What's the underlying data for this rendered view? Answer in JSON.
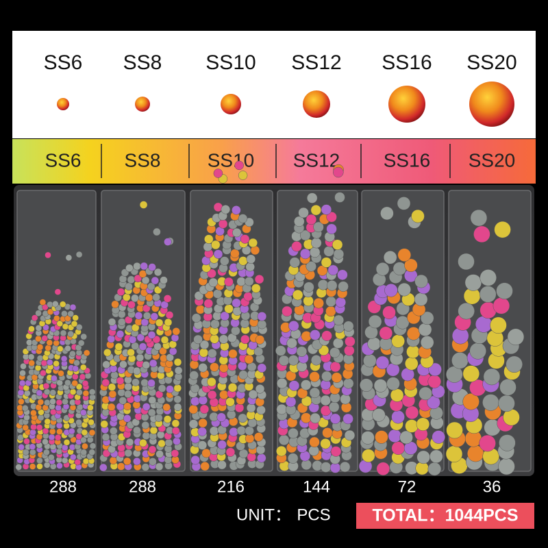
{
  "sizes": [
    {
      "label": "SS6",
      "count": 288
    },
    {
      "label": "SS8",
      "count": 288
    },
    {
      "label": "SS10",
      "count": 216
    },
    {
      "label": "SS12",
      "count": 144
    },
    {
      "label": "SS16",
      "count": 72
    },
    {
      "label": "SS20",
      "count": 36
    }
  ],
  "band_labels": [
    "SS6",
    "SS8",
    "SS10",
    "SS12",
    "SS16",
    "SS20"
  ],
  "unit": {
    "label": "UNIT：",
    "value": "PCS"
  },
  "total": "TOTAL：1044PCS"
}
